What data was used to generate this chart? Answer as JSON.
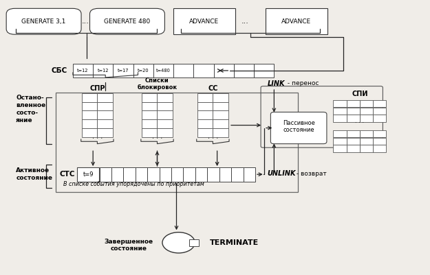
{
  "bg_color": "#f0ede8",
  "cbc_label": "СБС",
  "cbc_cells": [
    "t=12",
    "t=12",
    "t=17",
    "t=20",
    "t=480"
  ],
  "cpr_label": "СПР",
  "cc_label": "СС",
  "blk_label": "Списки\nблокировок",
  "ctc_label": "СТС",
  "ctc_cell": "t=9",
  "stopped_label": "Остано-\nвленное\nсосто-\nяние",
  "active_label": "Активное\nсостояние",
  "link_label": "LINK",
  "link_sub": " - перенос",
  "unlink_label": "UNLINK",
  "unlink_sub": " - возврат",
  "passive_label": "Пассивное\nсостояние",
  "spi_label": "СПИ",
  "priority_text": "В списке события упорядочены по приоритетам",
  "terminate_label": "TERMINATE",
  "completed_label": "Завершенное\nсостояние"
}
